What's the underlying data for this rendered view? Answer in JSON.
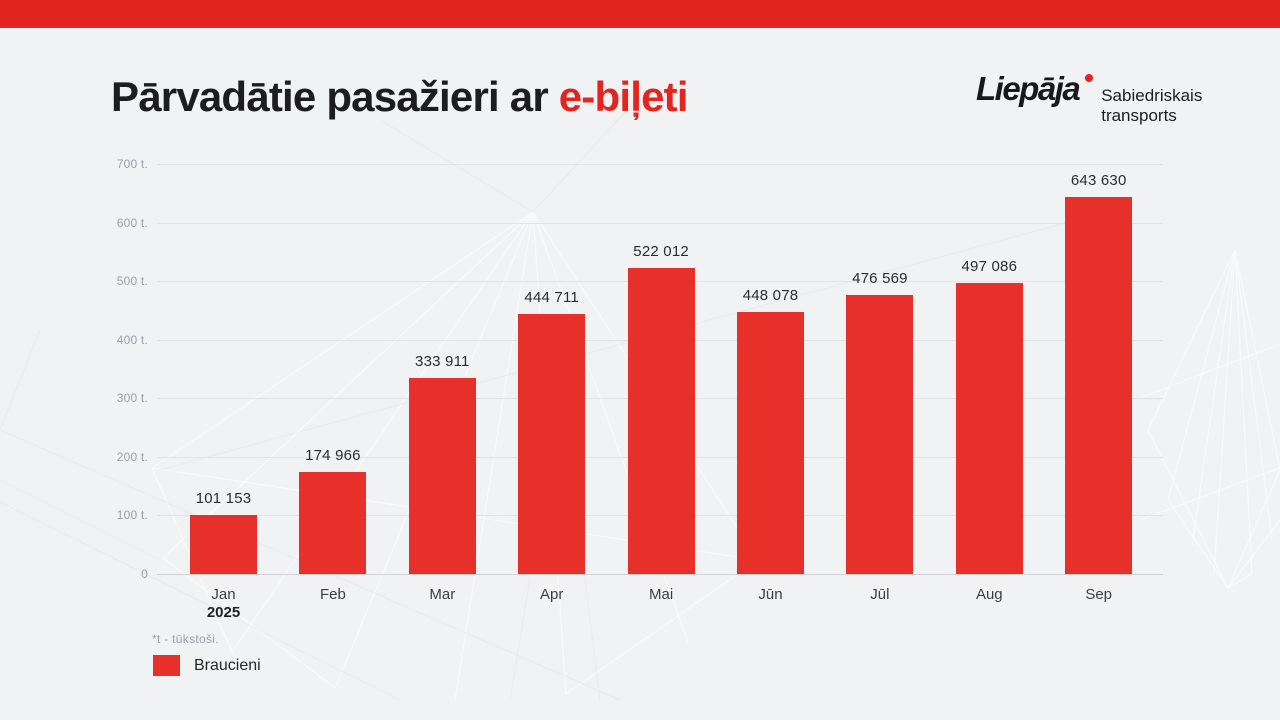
{
  "colors": {
    "accent": "#e2261f",
    "bar": "#e8302a",
    "background": "#f1f2f4"
  },
  "header": {
    "title": {
      "prefix": "Pārvadātie pasažieri ar",
      "highlight": "e-biļeti"
    },
    "logo": {
      "name": "Liepāja",
      "tagline_line1": "Sabiedriskais",
      "tagline_line2": "transports"
    }
  },
  "chart_data": {
    "type": "bar",
    "title": "Pārvadātie pasažieri ar e-biļeti",
    "categories": [
      "Jan",
      "Feb",
      "Mar",
      "Apr",
      "Mai",
      "Jūn",
      "Jūl",
      "Aug",
      "Sep"
    ],
    "year_label": "2025",
    "series": [
      {
        "name": "Braucieni",
        "values": [
          101153,
          174966,
          333911,
          444711,
          522012,
          448078,
          476569,
          497086,
          643630
        ]
      }
    ],
    "value_labels": [
      "101 153",
      "174 966",
      "333 911",
      "444 711",
      "522 012",
      "448 078",
      "476 569",
      "497 086",
      "643 630"
    ],
    "xlabel": "",
    "ylabel": "",
    "ylim": [
      0,
      700000
    ],
    "y_ticks": [
      "0",
      "100 t.",
      "200 t.",
      "300 t.",
      "400 t.",
      "500 t.",
      "600 t.",
      "700 t."
    ],
    "grid": "horizontal",
    "legend_position": "bottom-left",
    "footnote": "*t - tūkstoši.",
    "legend": [
      "Braucieni"
    ]
  }
}
